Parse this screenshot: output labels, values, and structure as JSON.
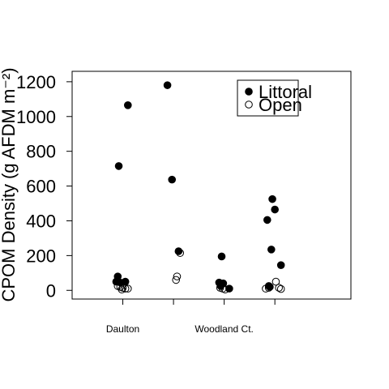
{
  "chart_data": {
    "type": "scatter",
    "title": "",
    "ylabel": "CPOM Density (g AFDM m⁻²)",
    "xlabel": "",
    "ylim": [
      -50,
      1260
    ],
    "xlim": [
      0.5,
      6
    ],
    "yticks": [
      0,
      200,
      400,
      600,
      800,
      1000,
      1200
    ],
    "x_tick_positions": [
      1.5,
      2.5,
      3.5,
      4.5
    ],
    "x_group_labels": [
      {
        "x": 1.5,
        "label": "Daulton"
      },
      {
        "x": 3.5,
        "label": "Woodland Ct."
      }
    ],
    "legend": {
      "position": "top-right",
      "entries": [
        {
          "name": "Littoral",
          "marker": "filled-circle"
        },
        {
          "name": "Open",
          "marker": "open-circle"
        }
      ]
    },
    "series": [
      {
        "name": "Littoral",
        "marker": "filled-circle",
        "color": "#000000",
        "points": [
          {
            "x": 1.4,
            "y": 80
          },
          {
            "x": 1.37,
            "y": 50
          },
          {
            "x": 1.55,
            "y": 50
          },
          {
            "x": 1.45,
            "y": 45
          },
          {
            "x": 1.6,
            "y": 1065
          },
          {
            "x": 1.42,
            "y": 715
          },
          {
            "x": 2.38,
            "y": 1180
          },
          {
            "x": 2.47,
            "y": 637
          },
          {
            "x": 2.6,
            "y": 225
          },
          {
            "x": 3.45,
            "y": 195
          },
          {
            "x": 3.4,
            "y": 45
          },
          {
            "x": 3.48,
            "y": 40
          },
          {
            "x": 3.43,
            "y": 25
          },
          {
            "x": 3.6,
            "y": 10
          },
          {
            "x": 4.35,
            "y": 405
          },
          {
            "x": 4.45,
            "y": 525
          },
          {
            "x": 4.5,
            "y": 465
          },
          {
            "x": 4.43,
            "y": 235
          },
          {
            "x": 4.62,
            "y": 145
          },
          {
            "x": 4.38,
            "y": 25
          },
          {
            "x": 4.4,
            "y": 20
          }
        ]
      },
      {
        "name": "Open",
        "marker": "open-circle",
        "color": "#000000",
        "points": [
          {
            "x": 1.4,
            "y": 25
          },
          {
            "x": 1.45,
            "y": 20
          },
          {
            "x": 1.5,
            "y": 15
          },
          {
            "x": 1.55,
            "y": 10
          },
          {
            "x": 1.6,
            "y": 10
          },
          {
            "x": 1.48,
            "y": 5
          },
          {
            "x": 2.55,
            "y": 60
          },
          {
            "x": 2.57,
            "y": 80
          },
          {
            "x": 2.63,
            "y": 215
          },
          {
            "x": 3.42,
            "y": 15
          },
          {
            "x": 3.47,
            "y": 10
          },
          {
            "x": 3.52,
            "y": 5
          },
          {
            "x": 4.32,
            "y": 10
          },
          {
            "x": 4.38,
            "y": 15
          },
          {
            "x": 4.52,
            "y": 50
          },
          {
            "x": 4.58,
            "y": 15
          },
          {
            "x": 4.62,
            "y": 8
          }
        ]
      }
    ]
  }
}
